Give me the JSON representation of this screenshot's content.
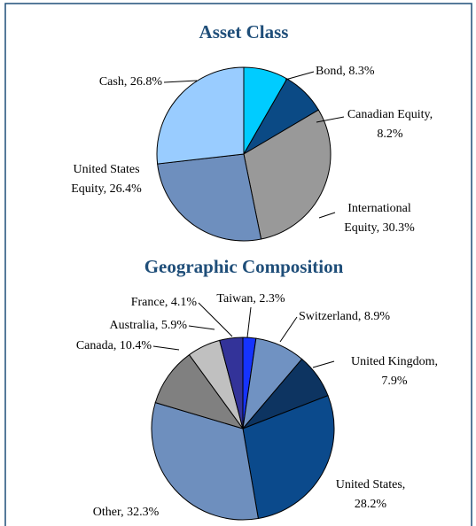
{
  "chart_data": [
    {
      "type": "pie",
      "title": "Asset Class",
      "values": [
        8.3,
        8.2,
        30.3,
        26.4,
        26.8
      ],
      "value_labels": [
        [
          "Bond, 8.3%"
        ],
        [
          "Canadian Equity,",
          "8.2%"
        ],
        [
          "International",
          "Equity, 30.3%"
        ],
        [
          "United States",
          "Equity, 26.4%"
        ],
        [
          "Cash, 26.8%"
        ]
      ],
      "colors": [
        "#00ccff",
        "#0b4a85",
        "#999999",
        "#6e8fbe",
        "#99ccff"
      ]
    },
    {
      "type": "pie",
      "title": "Geographic Composition",
      "values": [
        2.3,
        8.9,
        7.9,
        28.2,
        32.3,
        10.4,
        5.9,
        4.1
      ],
      "value_labels": [
        [
          "Taiwan, 2.3%"
        ],
        [
          "Switzerland, 8.9%"
        ],
        [
          "United Kingdom,",
          "7.9%"
        ],
        [
          "United States,",
          "28.2%"
        ],
        [
          "Other, 32.3%"
        ],
        [
          "Canada, 10.4%"
        ],
        [
          "Australia, 5.9%"
        ],
        [
          "France, 4.1%"
        ]
      ],
      "colors": [
        "#1533ff",
        "#7092c2",
        "#0d3461",
        "#0b4a8c",
        "#6e8fbe",
        "#808080",
        "#c0c0c0",
        "#333399"
      ]
    }
  ]
}
